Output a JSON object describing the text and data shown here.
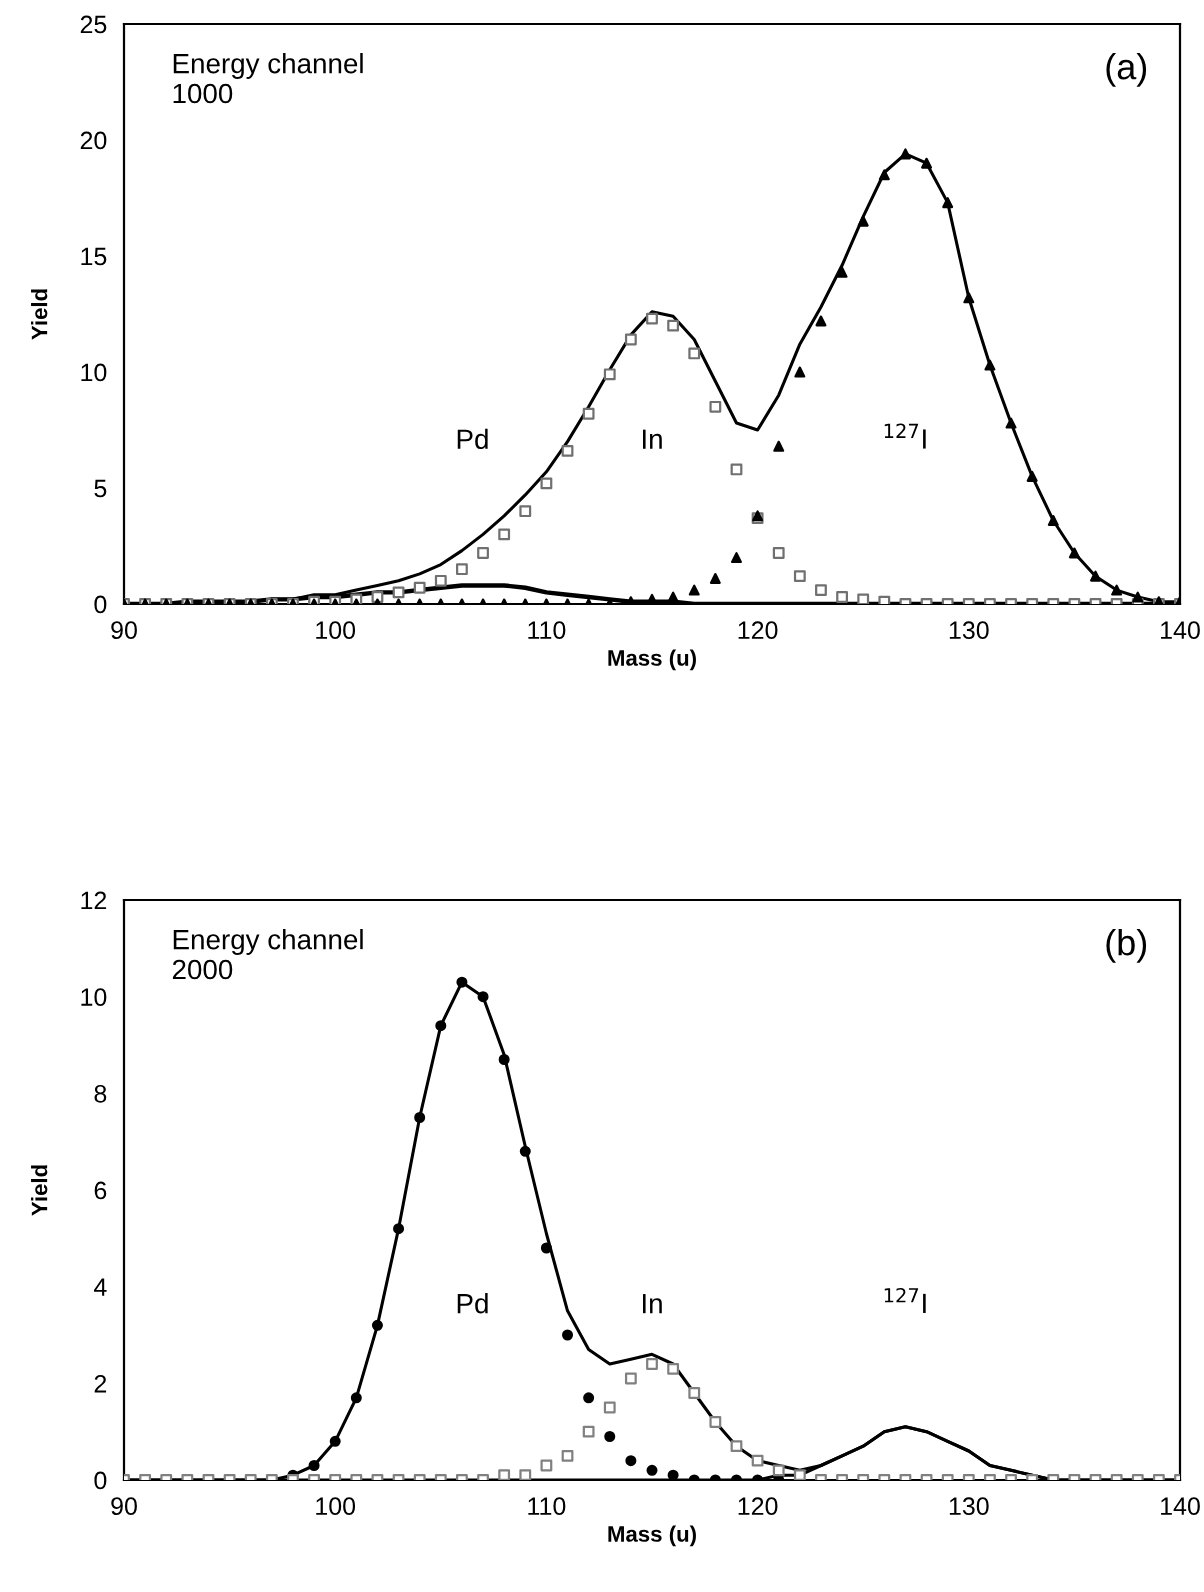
{
  "chart_data": [
    {
      "type": "line",
      "title": "(a)",
      "xlabel": "Mass (u)",
      "ylabel": "Yield",
      "annotations": [
        "Energy channel\n1000",
        "Pd",
        "In",
        "$^{127}$I"
      ],
      "x": [
        90,
        91,
        92,
        93,
        94,
        95,
        96,
        97,
        98,
        99,
        100,
        101,
        102,
        103,
        104,
        105,
        106,
        107,
        108,
        109,
        110,
        111,
        112,
        113,
        114,
        115,
        116,
        117,
        118,
        119,
        120,
        121,
        122,
        123,
        124,
        125,
        126,
        127,
        128,
        129,
        130,
        131,
        132,
        133,
        134,
        135,
        136,
        137,
        138,
        139,
        140
      ],
      "xlim": [
        90,
        140
      ],
      "xticks": [
        90,
        100,
        110,
        120,
        130,
        140
      ],
      "ylim": [
        0,
        25
      ],
      "yticks": [
        0,
        5,
        10,
        15,
        20,
        25
      ],
      "grid": false,
      "legend": false,
      "series": [
        {
          "color": "#000000",
          "line_style": "solid",
          "marker": "none",
          "values": [
            0,
            0,
            0,
            0.1,
            0.1,
            0.1,
            0.1,
            0.2,
            0.2,
            0.3,
            0.3,
            0.4,
            0.5,
            0.5,
            0.6,
            0.7,
            0.8,
            0.8,
            0.8,
            0.7,
            0.5,
            0.4,
            0.3,
            0.2,
            0.1,
            0.1,
            0.1,
            0,
            0,
            0,
            0,
            0,
            0,
            0,
            0,
            0,
            0,
            0,
            0,
            0,
            0,
            0,
            0,
            0,
            0,
            0,
            0,
            0,
            0,
            0,
            0
          ]
        },
        {
          "type": "scatter",
          "color": "#707070",
          "marker": "square",
          "values": [
            0,
            0,
            0,
            0,
            0,
            0,
            0,
            0,
            0,
            0.1,
            0.1,
            0.2,
            0.3,
            0.5,
            0.7,
            1.0,
            1.5,
            2.2,
            3.0,
            4.0,
            5.2,
            6.6,
            8.2,
            9.9,
            11.4,
            12.3,
            12.0,
            10.8,
            8.5,
            5.8,
            3.7,
            2.2,
            1.2,
            0.6,
            0.3,
            0.2,
            0.1,
            0,
            0,
            0,
            0,
            0,
            0,
            0,
            0,
            0,
            0,
            0,
            0,
            0,
            0
          ]
        },
        {
          "type": "scatter",
          "color": "#000000",
          "marker": "triangle",
          "values": [
            0,
            0,
            0,
            0,
            0,
            0,
            0,
            0,
            0,
            0,
            0,
            0,
            0,
            0,
            0,
            0,
            0,
            0,
            0,
            0,
            0,
            0,
            0,
            0,
            0.1,
            0.2,
            0.3,
            0.6,
            1.1,
            2.0,
            3.8,
            6.8,
            10.0,
            12.2,
            14.3,
            16.5,
            18.5,
            19.4,
            19.0,
            17.3,
            13.2,
            10.3,
            7.8,
            5.5,
            3.6,
            2.2,
            1.2,
            0.6,
            0.3,
            0.1,
            0.1
          ]
        },
        {
          "color": "#000000",
          "line_style": "solid",
          "marker": "none",
          "values": [
            0,
            0,
            0,
            0.1,
            0.1,
            0.1,
            0.1,
            0.2,
            0.2,
            0.4,
            0.4,
            0.6,
            0.8,
            1.0,
            1.3,
            1.7,
            2.3,
            3.0,
            3.8,
            4.7,
            5.7,
            7.0,
            8.5,
            10.1,
            11.6,
            12.6,
            12.4,
            11.4,
            9.6,
            7.8,
            7.5,
            9.0,
            11.2,
            12.8,
            14.6,
            16.7,
            18.6,
            19.4,
            19.0,
            17.3,
            13.2,
            10.3,
            7.8,
            5.5,
            3.6,
            2.2,
            1.2,
            0.6,
            0.3,
            0.1,
            0.1
          ]
        }
      ]
    },
    {
      "type": "line",
      "title": "(b)",
      "xlabel": "Mass (u)",
      "ylabel": "Yield",
      "annotations": [
        "Energy channel\n2000",
        "Pd",
        "In",
        "$^{127}$I"
      ],
      "x": [
        90,
        91,
        92,
        93,
        94,
        95,
        96,
        97,
        98,
        99,
        100,
        101,
        102,
        103,
        104,
        105,
        106,
        107,
        108,
        109,
        110,
        111,
        112,
        113,
        114,
        115,
        116,
        117,
        118,
        119,
        120,
        121,
        122,
        123,
        124,
        125,
        126,
        127,
        128,
        129,
        130,
        131,
        132,
        133,
        134,
        135,
        136,
        137,
        138,
        139,
        140
      ],
      "xlim": [
        90,
        140
      ],
      "xticks": [
        90,
        100,
        110,
        120,
        130,
        140
      ],
      "ylim": [
        0,
        12
      ],
      "yticks": [
        0,
        2,
        4,
        6,
        8,
        10,
        12
      ],
      "grid": false,
      "legend": false,
      "series": [
        {
          "type": "scatter",
          "color": "#000000",
          "marker": "circle",
          "values": [
            null,
            null,
            null,
            null,
            null,
            null,
            null,
            null,
            0.1,
            0.3,
            0.8,
            1.7,
            3.2,
            5.2,
            7.5,
            9.4,
            10.3,
            10.0,
            8.7,
            6.8,
            4.8,
            3.0,
            1.7,
            0.9,
            0.4,
            0.2,
            0.1,
            0,
            0,
            0,
            0,
            0,
            null,
            null,
            null,
            null,
            null,
            null,
            null,
            null,
            null,
            null,
            null,
            null,
            null,
            null,
            null,
            null,
            null,
            null,
            null
          ]
        },
        {
          "type": "scatter",
          "color": "#808080",
          "marker": "square",
          "values": [
            0,
            0,
            0,
            0,
            0,
            0,
            0,
            0,
            0,
            0,
            0,
            0,
            0,
            0,
            0,
            0,
            0,
            0,
            0.1,
            0.1,
            0.3,
            0.5,
            1.0,
            1.5,
            2.1,
            2.4,
            2.3,
            1.8,
            1.2,
            0.7,
            0.4,
            0.2,
            0.1,
            0,
            0,
            0,
            0,
            0,
            0,
            0,
            0,
            0,
            0,
            0,
            0,
            0,
            0,
            0,
            0,
            0,
            0
          ]
        },
        {
          "color": "#000000",
          "line_style": "solid",
          "marker": "none",
          "values": [
            0,
            0,
            0,
            0,
            0,
            0,
            0,
            0,
            0,
            0,
            0,
            0,
            0,
            0,
            0,
            0,
            0,
            0,
            0,
            0,
            0,
            0,
            0,
            0,
            0,
            0,
            0,
            0,
            0,
            0,
            0,
            0.1,
            0.1,
            0.3,
            0.5,
            0.7,
            1.0,
            1.1,
            1.0,
            0.8,
            0.6,
            0.3,
            0.2,
            0.1,
            0,
            0,
            0,
            0,
            0,
            0,
            0
          ]
        },
        {
          "color": "#000000",
          "line_style": "solid",
          "marker": "none",
          "values": [
            0,
            0,
            0,
            0,
            0,
            0,
            0,
            0,
            0.1,
            0.3,
            0.8,
            1.7,
            3.2,
            5.2,
            7.5,
            9.4,
            10.3,
            10.0,
            8.8,
            6.9,
            5.1,
            3.5,
            2.7,
            2.4,
            2.5,
            2.6,
            2.4,
            1.8,
            1.2,
            0.7,
            0.4,
            0.3,
            0.2,
            0.3,
            0.5,
            0.7,
            1.0,
            1.1,
            1.0,
            0.8,
            0.6,
            0.3,
            0.2,
            0.1,
            0,
            0,
            0,
            0,
            0,
            0,
            0
          ]
        }
      ]
    }
  ]
}
